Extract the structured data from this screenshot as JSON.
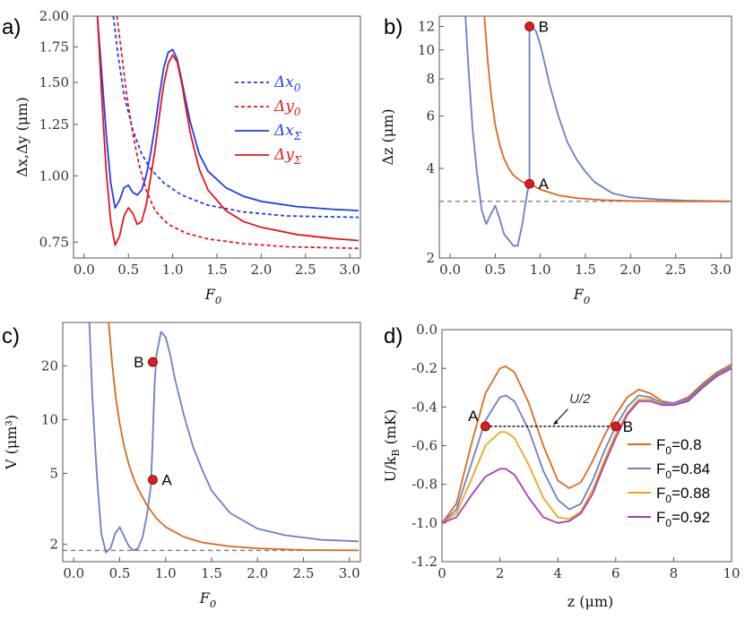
{
  "colors": {
    "blue": "#1f3fe6",
    "red": "#e8141c",
    "slate": "#6b7fc8",
    "orange": "#d96a1e",
    "yellow": "#eea81a",
    "purple": "#a63fb6",
    "dashed": "#777777",
    "marker": "#e41a1c"
  },
  "chart_data": [
    {
      "panel": "a)",
      "type": "line",
      "xlabel": "F₀",
      "ylabel": "Δx,Δy (μm)",
      "xlim": [
        -0.12,
        3.12
      ],
      "ylim": [
        0.7,
        2.0
      ],
      "yscale": "log",
      "xticks": [
        "0.0",
        "0.5",
        "1.0",
        "1.5",
        "2.0",
        "2.5",
        "3.0"
      ],
      "yticks": [
        "0.75",
        "1.00",
        "1.25",
        "1.50",
        "1.75",
        "2.00"
      ],
      "series": [
        {
          "name": "Δx₀",
          "color": "blue",
          "dashed": true,
          "x": [
            0.33,
            0.38,
            0.45,
            0.55,
            0.65,
            0.75,
            0.9,
            1.1,
            1.4,
            1.8,
            2.3,
            3.1
          ],
          "y": [
            2.0,
            1.7,
            1.42,
            1.22,
            1.1,
            1.03,
            0.97,
            0.92,
            0.88,
            0.855,
            0.84,
            0.835
          ]
        },
        {
          "name": "Δy₀",
          "color": "red",
          "dashed": true,
          "x": [
            0.37,
            0.42,
            0.48,
            0.55,
            0.62,
            0.7,
            0.8,
            0.95,
            1.15,
            1.4,
            1.8,
            2.3,
            3.1
          ],
          "y": [
            2.0,
            1.72,
            1.42,
            1.2,
            1.05,
            0.94,
            0.86,
            0.81,
            0.78,
            0.76,
            0.745,
            0.735,
            0.73
          ]
        },
        {
          "name": "ΔxΣ",
          "color": "blue",
          "dashed": false,
          "x": [
            0.15,
            0.2,
            0.25,
            0.3,
            0.35,
            0.4,
            0.45,
            0.5,
            0.55,
            0.6,
            0.65,
            0.7,
            0.75,
            0.8,
            0.85,
            0.9,
            0.95,
            1.0,
            1.05,
            1.1,
            1.15,
            1.2,
            1.3,
            1.4,
            1.6,
            1.8,
            2.0,
            2.4,
            2.8,
            3.1
          ],
          "y": [
            2.0,
            1.55,
            1.2,
            0.97,
            0.87,
            0.9,
            0.95,
            0.96,
            0.93,
            0.92,
            0.94,
            1.0,
            1.1,
            1.24,
            1.42,
            1.6,
            1.71,
            1.73,
            1.66,
            1.52,
            1.38,
            1.26,
            1.1,
            1.02,
            0.95,
            0.915,
            0.895,
            0.875,
            0.865,
            0.86
          ]
        },
        {
          "name": "ΔyΣ",
          "color": "red",
          "dashed": false,
          "x": [
            0.15,
            0.2,
            0.25,
            0.3,
            0.35,
            0.4,
            0.45,
            0.5,
            0.55,
            0.6,
            0.65,
            0.7,
            0.75,
            0.8,
            0.85,
            0.9,
            0.95,
            1.0,
            1.05,
            1.1,
            1.15,
            1.2,
            1.3,
            1.4,
            1.6,
            1.8,
            2.0,
            2.4,
            2.8,
            3.1
          ],
          "y": [
            2.0,
            1.4,
            1.02,
            0.82,
            0.74,
            0.77,
            0.84,
            0.87,
            0.85,
            0.81,
            0.82,
            0.88,
            0.99,
            1.12,
            1.3,
            1.49,
            1.63,
            1.69,
            1.64,
            1.5,
            1.34,
            1.2,
            1.03,
            0.94,
            0.86,
            0.82,
            0.8,
            0.775,
            0.762,
            0.755
          ]
        }
      ]
    },
    {
      "panel": "b)",
      "type": "line",
      "xlabel": "F₀",
      "ylabel": "Δz (μm)",
      "xlim": [
        -0.12,
        3.12
      ],
      "ylim": [
        2,
        13
      ],
      "yscale": "log",
      "xticks": [
        "0.0",
        "0.5",
        "1.0",
        "1.5",
        "2.0",
        "2.5",
        "3.0"
      ],
      "yticks": [
        "2",
        "4",
        "6",
        "8",
        "10",
        "12"
      ],
      "reference_value": 3.1,
      "series": [
        {
          "name": "slate",
          "color": "slate",
          "x": [
            0.17,
            0.2,
            0.25,
            0.3,
            0.35,
            0.4,
            0.45,
            0.5,
            0.55,
            0.6,
            0.65,
            0.7,
            0.75,
            0.8,
            0.84,
            0.87,
            0.88,
            0.88,
            0.9,
            0.95,
            1.0,
            1.05,
            1.1,
            1.2,
            1.3,
            1.4,
            1.5,
            1.6,
            1.8,
            2.0,
            2.3,
            2.6,
            3.1
          ],
          "y": [
            13,
            9.0,
            5.4,
            3.8,
            2.9,
            2.6,
            2.8,
            3.0,
            2.7,
            2.4,
            2.3,
            2.2,
            2.2,
            2.6,
            3.1,
            3.5,
            3.55,
            12.0,
            12.0,
            11.6,
            10.4,
            9.0,
            7.7,
            6.0,
            4.9,
            4.3,
            3.9,
            3.6,
            3.3,
            3.2,
            3.15,
            3.12,
            3.1
          ]
        },
        {
          "name": "orange",
          "color": "orange",
          "x": [
            0.38,
            0.42,
            0.46,
            0.5,
            0.55,
            0.6,
            0.65,
            0.7,
            0.8,
            0.88,
            1.0,
            1.2,
            1.4,
            1.7,
            2.0,
            2.5,
            3.1
          ],
          "y": [
            13,
            9.0,
            6.8,
            5.6,
            4.8,
            4.3,
            4.0,
            3.8,
            3.6,
            3.55,
            3.4,
            3.25,
            3.18,
            3.13,
            3.11,
            3.1,
            3.1
          ]
        }
      ],
      "points": [
        {
          "label": "A",
          "x": 0.88,
          "y": 3.55
        },
        {
          "label": "B",
          "x": 0.88,
          "y": 12.0
        }
      ]
    },
    {
      "panel": "c)",
      "type": "line",
      "xlabel": "F₀",
      "ylabel": "V (μm³)",
      "xlim": [
        -0.12,
        3.12
      ],
      "ylim": [
        1.6,
        35
      ],
      "yscale": "log",
      "xticks": [
        "0.0",
        "0.5",
        "1.0",
        "1.5",
        "2.0",
        "2.5",
        "3.0"
      ],
      "yticks": [
        "2",
        "5",
        "10",
        "20"
      ],
      "reference_value": 1.85,
      "series": [
        {
          "name": "slate",
          "color": "slate",
          "x": [
            0.17,
            0.2,
            0.25,
            0.3,
            0.35,
            0.4,
            0.45,
            0.5,
            0.55,
            0.6,
            0.65,
            0.7,
            0.75,
            0.8,
            0.84,
            0.86,
            0.88,
            0.9,
            0.95,
            1.0,
            1.05,
            1.1,
            1.2,
            1.3,
            1.4,
            1.5,
            1.7,
            2.0,
            2.3,
            2.7,
            3.1
          ],
          "y": [
            35,
            14,
            5,
            2.3,
            1.8,
            1.9,
            2.3,
            2.5,
            2.2,
            1.95,
            1.85,
            1.9,
            2.2,
            3.0,
            4.3,
            8,
            16,
            23,
            31,
            29,
            23,
            17,
            10.5,
            7,
            5.2,
            4,
            3,
            2.45,
            2.25,
            2.12,
            2.08
          ]
        },
        {
          "name": "orange",
          "color": "orange",
          "x": [
            0.38,
            0.42,
            0.46,
            0.5,
            0.55,
            0.6,
            0.65,
            0.7,
            0.8,
            0.9,
            1.0,
            1.2,
            1.4,
            1.7,
            2.0,
            2.5,
            3.1
          ],
          "y": [
            35,
            20,
            13,
            9.5,
            7,
            5.6,
            4.7,
            4.1,
            3.3,
            2.8,
            2.5,
            2.2,
            2.05,
            1.95,
            1.9,
            1.86,
            1.85
          ]
        }
      ],
      "points": [
        {
          "label": "A",
          "x": 0.86,
          "y": 4.6
        },
        {
          "label": "B",
          "x": 0.86,
          "y": 21
        }
      ]
    },
    {
      "panel": "d)",
      "type": "line",
      "xlabel": "z (μm)",
      "ylabel": "U/k_B (mK)",
      "xlim": [
        0,
        10
      ],
      "ylim": [
        -1.2,
        0.0
      ],
      "yscale": "linear",
      "xticks": [
        "0",
        "2",
        "4",
        "6",
        "8",
        "10"
      ],
      "yticks": [
        "0.0",
        "-0.2",
        "-0.4",
        "-0.6",
        "-0.8",
        "-1.0",
        "-1.2"
      ],
      "half_level": -0.5,
      "annotation": "U/2",
      "series": [
        {
          "name": "F₀=0.8",
          "color": "orange",
          "x": [
            0,
            0.5,
            1,
            1.5,
            2,
            2.2,
            2.5,
            3,
            3.5,
            4,
            4.4,
            4.8,
            5.2,
            5.6,
            6,
            6.4,
            6.8,
            7.2,
            7.6,
            8,
            8.5,
            9,
            9.5,
            10
          ],
          "y": [
            -1.0,
            -0.9,
            -0.6,
            -0.33,
            -0.2,
            -0.19,
            -0.22,
            -0.38,
            -0.6,
            -0.78,
            -0.82,
            -0.79,
            -0.68,
            -0.55,
            -0.44,
            -0.35,
            -0.31,
            -0.33,
            -0.37,
            -0.38,
            -0.35,
            -0.28,
            -0.22,
            -0.18
          ]
        },
        {
          "name": "F₀=0.84",
          "color": "slate",
          "x": [
            0,
            0.5,
            1,
            1.5,
            2,
            2.2,
            2.5,
            3,
            3.5,
            4,
            4.4,
            4.8,
            5.2,
            5.6,
            6,
            6.4,
            6.8,
            7.2,
            7.6,
            8,
            8.5,
            9,
            9.5,
            10
          ],
          "y": [
            -1.0,
            -0.93,
            -0.7,
            -0.47,
            -0.35,
            -0.34,
            -0.37,
            -0.52,
            -0.73,
            -0.88,
            -0.93,
            -0.9,
            -0.78,
            -0.63,
            -0.5,
            -0.4,
            -0.34,
            -0.35,
            -0.38,
            -0.38,
            -0.36,
            -0.29,
            -0.23,
            -0.19
          ]
        },
        {
          "name": "F₀=0.88",
          "color": "yellow",
          "x": [
            0,
            0.5,
            1,
            1.5,
            2,
            2.2,
            2.5,
            3,
            3.5,
            4,
            4.4,
            4.8,
            5.2,
            5.6,
            6,
            6.4,
            6.8,
            7.2,
            7.6,
            8,
            8.5,
            9,
            9.5,
            10
          ],
          "y": [
            -1.0,
            -0.95,
            -0.78,
            -0.6,
            -0.53,
            -0.53,
            -0.56,
            -0.7,
            -0.87,
            -0.97,
            -0.98,
            -0.94,
            -0.83,
            -0.68,
            -0.54,
            -0.43,
            -0.36,
            -0.36,
            -0.39,
            -0.39,
            -0.37,
            -0.3,
            -0.24,
            -0.2
          ]
        },
        {
          "name": "F₀=0.92",
          "color": "purple",
          "x": [
            0,
            0.5,
            1,
            1.5,
            2,
            2.2,
            2.5,
            3,
            3.5,
            4,
            4.4,
            4.8,
            5.2,
            5.6,
            6,
            6.4,
            6.8,
            7.2,
            7.6,
            8,
            8.5,
            9,
            9.5,
            10
          ],
          "y": [
            -1.0,
            -0.97,
            -0.86,
            -0.76,
            -0.72,
            -0.72,
            -0.75,
            -0.87,
            -0.97,
            -1.0,
            -0.99,
            -0.95,
            -0.85,
            -0.7,
            -0.56,
            -0.44,
            -0.37,
            -0.37,
            -0.39,
            -0.39,
            -0.37,
            -0.3,
            -0.24,
            -0.2
          ]
        }
      ],
      "points": [
        {
          "label": "A",
          "x": 1.5,
          "y": -0.5
        },
        {
          "label": "B",
          "x": 6.0,
          "y": -0.5
        }
      ]
    }
  ],
  "legend_a": [
    {
      "symbol": "Δx",
      "sub": "0",
      "color": "blue",
      "dashed": true
    },
    {
      "symbol": "Δy",
      "sub": "0",
      "color": "red",
      "dashed": true
    },
    {
      "symbol": "Δx",
      "sub": "Σ",
      "color": "blue",
      "dashed": false
    },
    {
      "symbol": "Δy",
      "sub": "Σ",
      "color": "red",
      "dashed": false
    }
  ],
  "legend_d": [
    {
      "prefix": "F",
      "sub": "0",
      "value": "=0.8",
      "color": "orange"
    },
    {
      "prefix": "F",
      "sub": "0",
      "value": "=0.84",
      "color": "slate"
    },
    {
      "prefix": "F",
      "sub": "0",
      "value": "=0.88",
      "color": "yellow"
    },
    {
      "prefix": "F",
      "sub": "0",
      "value": "=0.92",
      "color": "purple"
    }
  ]
}
